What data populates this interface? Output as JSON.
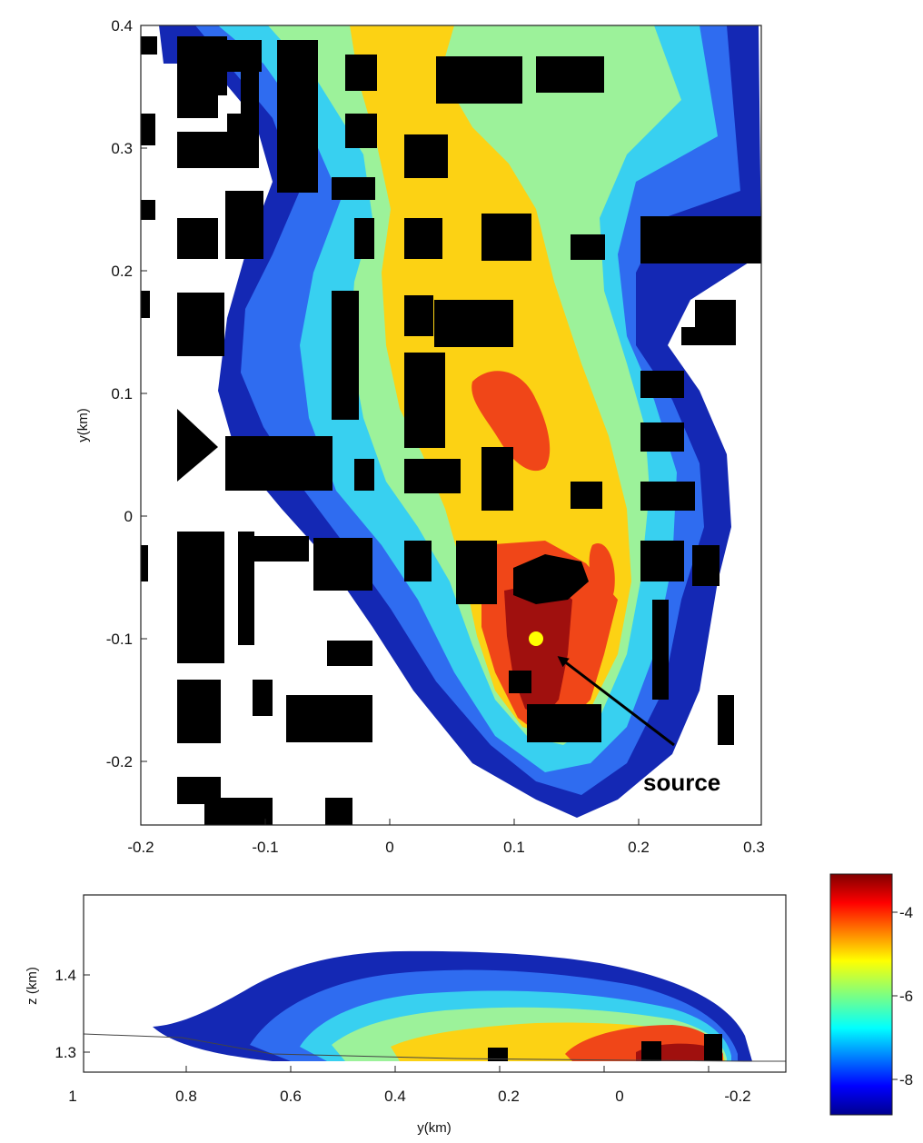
{
  "chart_data": [
    {
      "type": "heatmap",
      "subtype": "filled-contour (plan view)",
      "title": "",
      "xlabel": "",
      "ylabel": "y(km)",
      "xlim": [
        -0.2,
        0.3
      ],
      "ylim": [
        -0.25,
        0.4
      ],
      "xticks": [
        "-0.2",
        "-0.1",
        "0",
        "0.1",
        "0.2",
        "0.3"
      ],
      "yticks": [
        "-0.2",
        "-0.1",
        "0",
        "0.1",
        "0.2",
        "0.3",
        "0.4"
      ],
      "contour_levels": [
        -9,
        -8,
        -7,
        -6,
        -5,
        -4,
        -3.5
      ],
      "source": {
        "x": 0.12,
        "y": -0.1
      },
      "annotation": {
        "text": "source",
        "target": [
          0.135,
          -0.115
        ]
      },
      "grid": false,
      "buildings_color": "#000000"
    },
    {
      "type": "heatmap",
      "subtype": "filled-contour (vertical section)",
      "title": "",
      "xlabel": "y(km)",
      "ylabel": "z (km)",
      "xlim": [
        1,
        -0.3
      ],
      "ylim": [
        1.28,
        1.45
      ],
      "xticks": [
        "1",
        "0.8",
        "0.6",
        "0.4",
        "0.2",
        "0",
        "-0.2"
      ],
      "yticks": [
        "1.3",
        "1.4"
      ],
      "grid": false
    },
    {
      "type": "colorbar",
      "range": [
        -9,
        -3.2
      ],
      "ticks": [
        "-4",
        "-6",
        "-8"
      ],
      "colormap": "jet"
    }
  ],
  "colors": {
    "level_1": "#1428b4",
    "level_2": "#2f6cf0",
    "level_3": "#38d0f0",
    "level_4": "#9cf29a",
    "level_5": "#fcd214",
    "level_6": "#f04618",
    "level_7": "#a0100e",
    "buildings": "#000000",
    "source_marker": "#ffff00"
  }
}
